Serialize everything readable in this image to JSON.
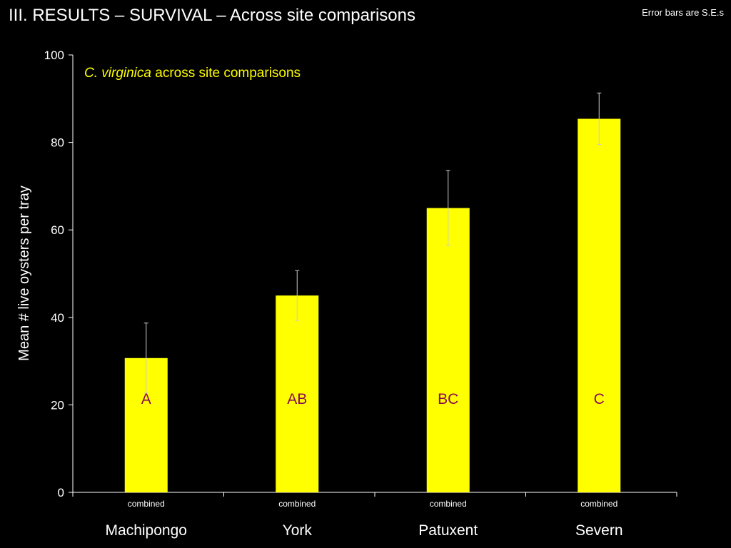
{
  "slide": {
    "title": "III.  RESULTS –  SURVIVAL – Across site comparisons",
    "note": "Error bars are S.E.s"
  },
  "chart_data": {
    "type": "bar",
    "title": "",
    "subtitle_italic": "C. virginica",
    "subtitle_rest": " across site comparisons",
    "ylabel": "Mean # live oysters per tray",
    "xlabel": "",
    "ylim": [
      0,
      100
    ],
    "yticks": [
      0,
      20,
      40,
      60,
      80,
      100
    ],
    "sub_categories": [
      "combined",
      "combined",
      "combined",
      "combined"
    ],
    "categories": [
      "Machipongo",
      "York",
      "Patuxent",
      "Severn"
    ],
    "values": [
      30.7,
      45.0,
      65.0,
      85.4
    ],
    "errors": [
      8.0,
      5.7,
      8.6,
      5.9
    ],
    "group_letters": [
      "A",
      "AB",
      "BC",
      "C"
    ],
    "bar_color": "#ffff00",
    "letter_color": "#8b0a50",
    "grid": false,
    "legend": "none"
  }
}
